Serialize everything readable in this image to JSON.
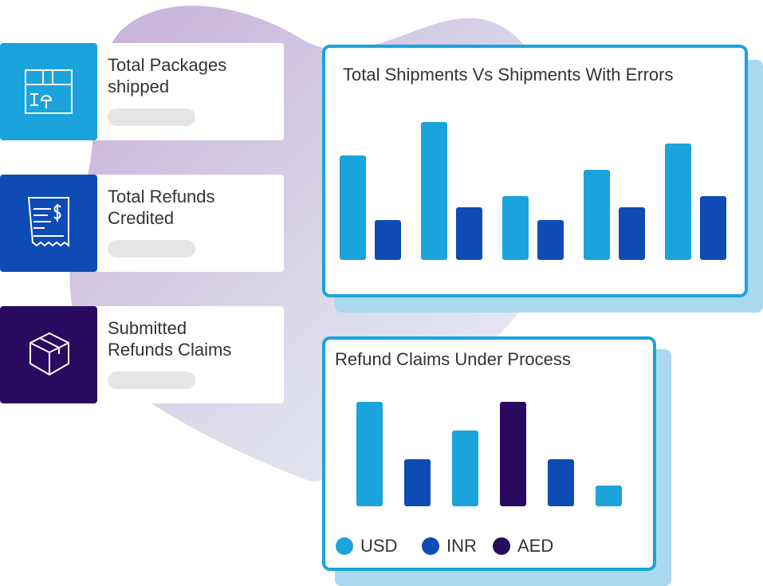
{
  "cards": [
    {
      "label": "Total Packages shipped"
    },
    {
      "label": "Total Refunds Credited"
    },
    {
      "label": "Submitted Refunds Claims"
    }
  ],
  "chart_data": [
    {
      "type": "bar",
      "title": "Total Shipments Vs Shipments With Errors",
      "categories": [
        null,
        null,
        null,
        null,
        null
      ],
      "series": [
        {
          "color": "#1ba3db",
          "values": [
            131,
            173,
            80,
            113,
            146
          ]
        },
        {
          "color": "#0f4bb5",
          "values": [
            50,
            66,
            50,
            66,
            80
          ]
        }
      ]
    },
    {
      "type": "bar",
      "title": "Refund Claims Under Process",
      "categories": [
        null,
        null,
        null,
        null,
        null,
        null
      ],
      "series": [
        {
          "name": "USD",
          "color": "#1ba3db",
          "values": [
            131,
            null,
            95,
            null,
            null,
            26
          ]
        },
        {
          "name": "INR",
          "color": "#0f4bb5",
          "values": [
            null,
            59,
            null,
            null,
            59,
            null
          ]
        },
        {
          "name": "AED",
          "color": "#2a0a5e",
          "values": [
            null,
            null,
            null,
            131,
            null,
            null
          ]
        }
      ]
    }
  ]
}
